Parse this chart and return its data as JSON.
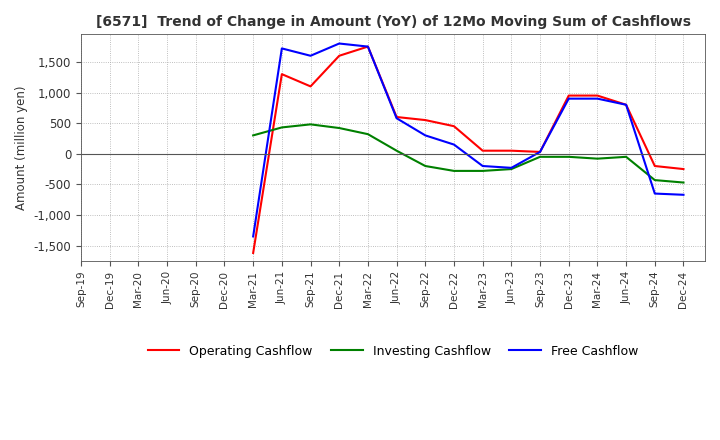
{
  "title": "[6571]  Trend of Change in Amount (YoY) of 12Mo Moving Sum of Cashflows",
  "ylabel": "Amount (million yen)",
  "ylim": [
    -1750,
    1950
  ],
  "yticks": [
    -1500,
    -1000,
    -500,
    0,
    500,
    1000,
    1500
  ],
  "bg_color": "#ffffff",
  "grid_color": "#aaaaaa",
  "operating_color": "#ff0000",
  "investing_color": "#008000",
  "free_color": "#0000ff",
  "x_labels": [
    "Sep-19",
    "Dec-19",
    "Mar-20",
    "Jun-20",
    "Sep-20",
    "Dec-20",
    "Mar-21",
    "Jun-21",
    "Sep-21",
    "Dec-21",
    "Mar-22",
    "Jun-22",
    "Sep-22",
    "Dec-22",
    "Mar-23",
    "Jun-23",
    "Sep-23",
    "Dec-23",
    "Mar-24",
    "Jun-24",
    "Sep-24",
    "Dec-24"
  ],
  "operating": [
    null,
    null,
    null,
    null,
    null,
    null,
    -1620,
    1300,
    1100,
    1600,
    1750,
    600,
    550,
    450,
    50,
    50,
    30,
    950,
    950,
    800,
    -200,
    -250
  ],
  "investing": [
    null,
    null,
    null,
    null,
    null,
    null,
    300,
    430,
    480,
    420,
    320,
    50,
    -200,
    -280,
    -280,
    -250,
    -50,
    -50,
    -80,
    -50,
    -430,
    -470
  ],
  "free": [
    null,
    null,
    null,
    null,
    null,
    null,
    -1350,
    1720,
    1600,
    1800,
    1750,
    580,
    300,
    150,
    -200,
    -230,
    30,
    900,
    900,
    800,
    -650,
    -670
  ]
}
